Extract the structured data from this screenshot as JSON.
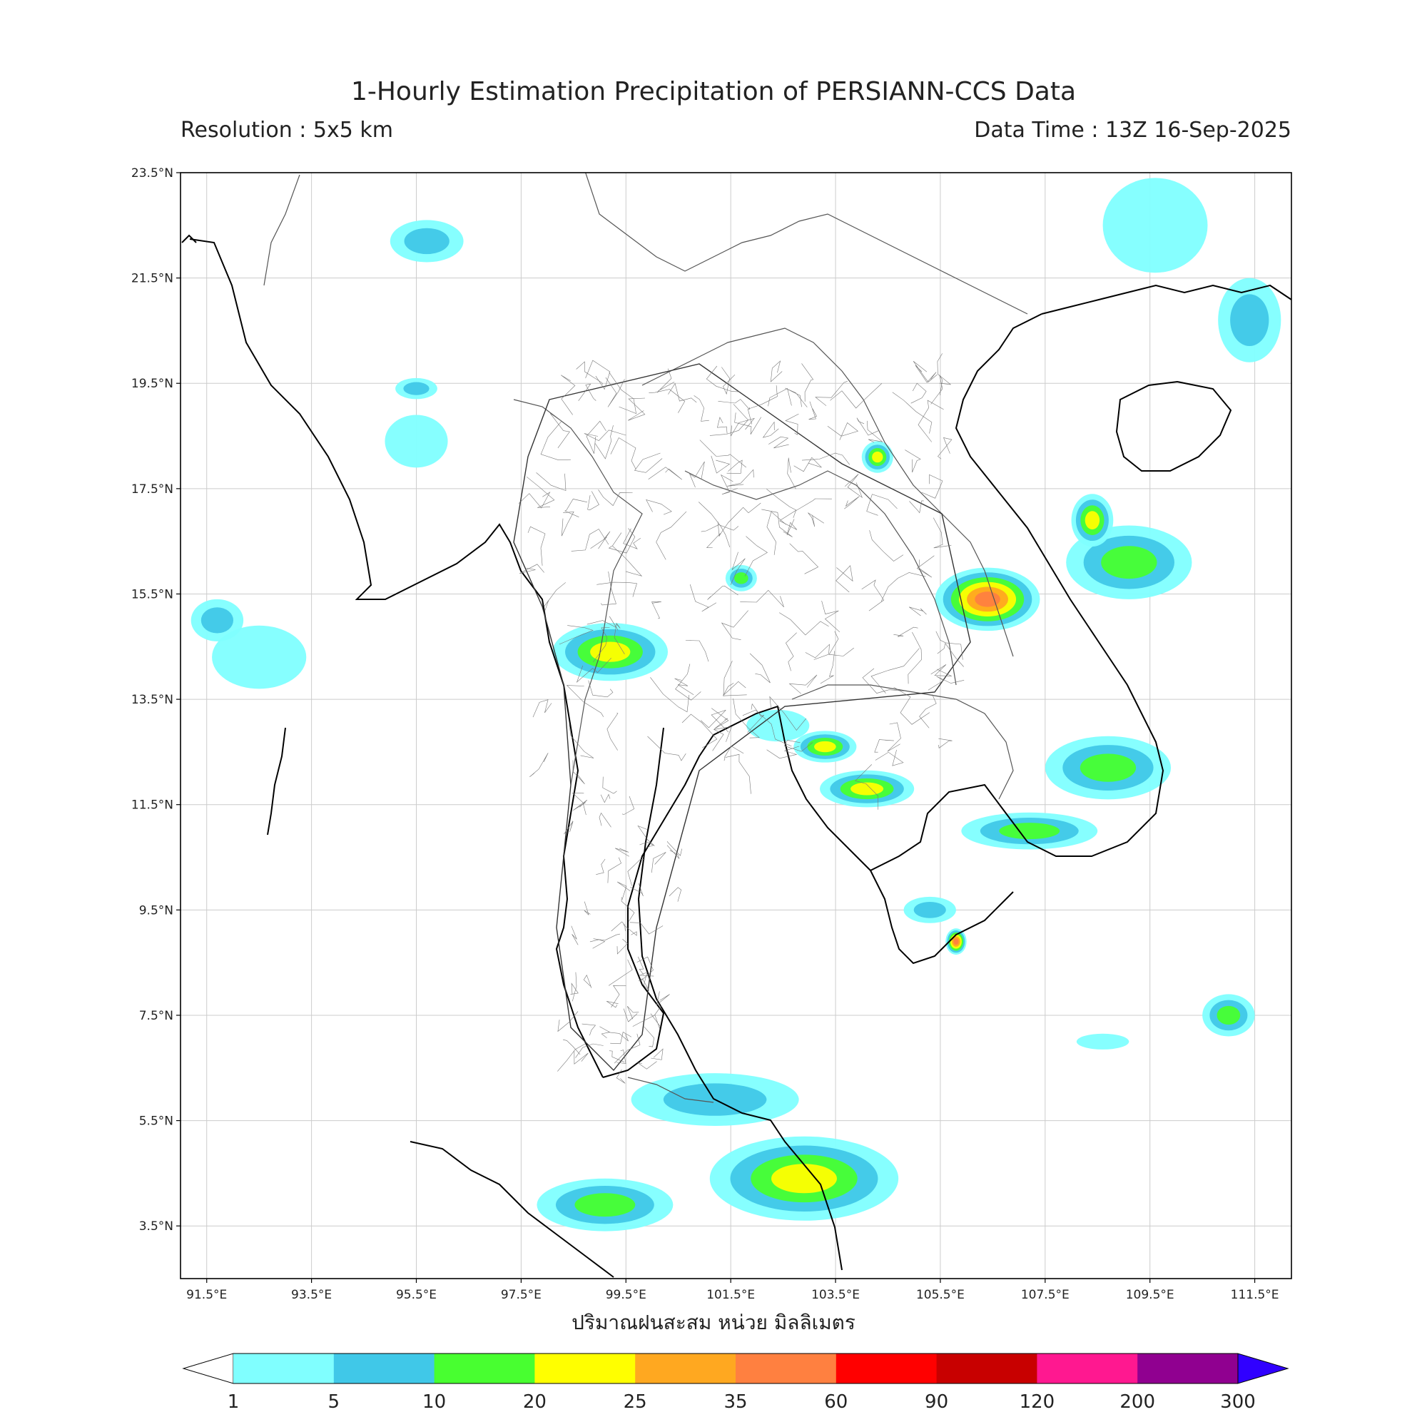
{
  "header": {
    "title": "1-Hourly Estimation Precipitation of PERSIANN-CCS Data",
    "resolution": "Resolution : 5x5 km",
    "data_time": "Data Time : 13Z 16-Sep-2025"
  },
  "map": {
    "lon_range": [
      91.0,
      112.2
    ],
    "lat_range": [
      2.5,
      23.5
    ],
    "lat_ticks": [
      "23.5°N",
      "21.5°N",
      "19.5°N",
      "17.5°N",
      "15.5°N",
      "13.5°N",
      "11.5°N",
      "9.5°N",
      "7.5°N",
      "5.5°N",
      "3.5°N"
    ],
    "lon_ticks": [
      "91.5°E",
      "93.5°E",
      "95.5°E",
      "97.5°E",
      "99.5°E",
      "101.5°E",
      "103.5°E",
      "105.5°E",
      "107.5°E",
      "109.5°E",
      "111.5°E"
    ]
  },
  "legend": {
    "unit_label": "ปริมาณฝนสะสม หน่วย มิลลิเมตร",
    "levels": [
      "1",
      "5",
      "10",
      "20",
      "25",
      "35",
      "60",
      "90",
      "120",
      "200",
      "300"
    ],
    "colors": [
      "#80ffff",
      "#40c8e8",
      "#48ff30",
      "#ffff00",
      "#ffa820",
      "#ff8040",
      "#ff0000",
      "#c80000",
      "#ff1890",
      "#900090",
      "#3000ff"
    ],
    "below_color": "#ffffff",
    "above_color": "#3000ff"
  },
  "rain_cells": [
    {
      "lon": 99.2,
      "lat": 14.4,
      "rx": 1.1,
      "ry": 0.55,
      "level": 3
    },
    {
      "lon": 106.4,
      "lat": 15.4,
      "rx": 1.0,
      "ry": 0.6,
      "level": 5
    },
    {
      "lon": 109.1,
      "lat": 16.1,
      "rx": 1.2,
      "ry": 0.7,
      "level": 2
    },
    {
      "lon": 102.9,
      "lat": 4.4,
      "rx": 1.8,
      "ry": 0.8,
      "level": 3
    },
    {
      "lon": 99.1,
      "lat": 3.9,
      "rx": 1.3,
      "ry": 0.5,
      "level": 2
    },
    {
      "lon": 104.1,
      "lat": 11.8,
      "rx": 0.9,
      "ry": 0.35,
      "level": 3
    },
    {
      "lon": 103.3,
      "lat": 12.6,
      "rx": 0.6,
      "ry": 0.3,
      "level": 3
    },
    {
      "lon": 108.7,
      "lat": 12.2,
      "rx": 1.2,
      "ry": 0.6,
      "level": 2
    },
    {
      "lon": 107.2,
      "lat": 11.0,
      "rx": 1.3,
      "ry": 0.35,
      "level": 2
    },
    {
      "lon": 101.2,
      "lat": 5.9,
      "rx": 1.6,
      "ry": 0.5,
      "level": 1
    },
    {
      "lon": 95.5,
      "lat": 18.4,
      "rx": 0.6,
      "ry": 0.5,
      "level": 0
    },
    {
      "lon": 95.7,
      "lat": 22.2,
      "rx": 0.7,
      "ry": 0.4,
      "level": 1
    },
    {
      "lon": 111.4,
      "lat": 20.7,
      "rx": 0.6,
      "ry": 0.8,
      "level": 1
    },
    {
      "lon": 111.0,
      "lat": 7.5,
      "rx": 0.5,
      "ry": 0.4,
      "level": 2
    },
    {
      "lon": 92.5,
      "lat": 14.3,
      "rx": 0.9,
      "ry": 0.6,
      "level": 0
    },
    {
      "lon": 109.6,
      "lat": 22.5,
      "rx": 1.0,
      "ry": 0.9,
      "level": 0
    },
    {
      "lon": 95.5,
      "lat": 19.4,
      "rx": 0.4,
      "ry": 0.2,
      "level": 1
    },
    {
      "lon": 105.3,
      "lat": 9.5,
      "rx": 0.5,
      "ry": 0.25,
      "level": 1
    },
    {
      "lon": 105.8,
      "lat": 8.9,
      "rx": 0.2,
      "ry": 0.25,
      "level": 5
    },
    {
      "lon": 108.4,
      "lat": 16.9,
      "rx": 0.4,
      "ry": 0.5,
      "level": 3
    },
    {
      "lon": 101.7,
      "lat": 15.8,
      "rx": 0.3,
      "ry": 0.25,
      "level": 2
    },
    {
      "lon": 104.3,
      "lat": 18.1,
      "rx": 0.3,
      "ry": 0.3,
      "level": 3
    },
    {
      "lon": 102.4,
      "lat": 13.0,
      "rx": 0.6,
      "ry": 0.3,
      "level": 0
    },
    {
      "lon": 108.6,
      "lat": 7.0,
      "rx": 0.5,
      "ry": 0.15,
      "level": 0
    },
    {
      "lon": 91.7,
      "lat": 15.0,
      "rx": 0.5,
      "ry": 0.4,
      "level": 1
    }
  ]
}
